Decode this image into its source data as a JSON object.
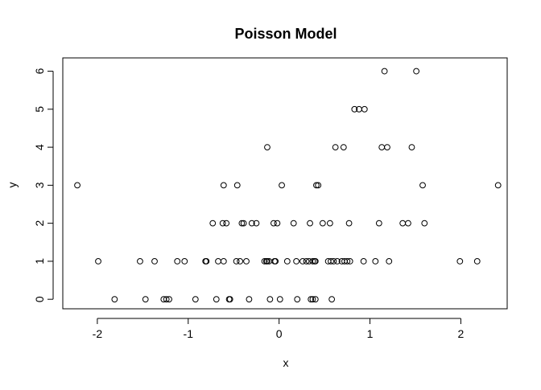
{
  "chart_data": {
    "type": "scatter",
    "title": "Poisson Model",
    "xlabel": "x",
    "ylabel": "y",
    "xlim": [
      -2.38,
      2.51
    ],
    "ylim": [
      -0.25,
      6.35
    ],
    "xticks": [
      "-2",
      "-1",
      "0",
      "1",
      "2"
    ],
    "yticks": [
      "0",
      "1",
      "2",
      "3",
      "4",
      "5",
      "6"
    ],
    "grid": false,
    "legend": "none",
    "marker": "open-circle",
    "series": [
      {
        "points": [
          [
            -2.22,
            3
          ],
          [
            -1.99,
            1
          ],
          [
            -1.81,
            0
          ],
          [
            -1.53,
            1
          ],
          [
            -1.47,
            0
          ],
          [
            -1.37,
            1
          ],
          [
            -1.27,
            0
          ],
          [
            -1.24,
            0
          ],
          [
            -1.21,
            0
          ],
          [
            -1.12,
            1
          ],
          [
            -1.04,
            1
          ],
          [
            -0.92,
            0
          ],
          [
            -0.81,
            1
          ],
          [
            -0.8,
            1
          ],
          [
            -0.73,
            2
          ],
          [
            -0.69,
            0
          ],
          [
            -0.67,
            1
          ],
          [
            -0.62,
            2
          ],
          [
            -0.61,
            3
          ],
          [
            -0.61,
            1
          ],
          [
            -0.58,
            2
          ],
          [
            -0.55,
            0
          ],
          [
            -0.54,
            0
          ],
          [
            -0.47,
            1
          ],
          [
            -0.46,
            3
          ],
          [
            -0.43,
            1
          ],
          [
            -0.41,
            2
          ],
          [
            -0.39,
            2
          ],
          [
            -0.36,
            1
          ],
          [
            -0.33,
            0
          ],
          [
            -0.3,
            2
          ],
          [
            -0.25,
            2
          ],
          [
            -0.16,
            1
          ],
          [
            -0.14,
            1
          ],
          [
            -0.13,
            1
          ],
          [
            -0.13,
            4
          ],
          [
            -0.11,
            1
          ],
          [
            -0.1,
            0
          ],
          [
            -0.06,
            2
          ],
          [
            -0.05,
            1
          ],
          [
            -0.04,
            1
          ],
          [
            -0.02,
            2
          ],
          [
            0.01,
            0
          ],
          [
            0.03,
            3
          ],
          [
            0.09,
            1
          ],
          [
            0.16,
            2
          ],
          [
            0.19,
            1
          ],
          [
            0.2,
            0
          ],
          [
            0.26,
            1
          ],
          [
            0.3,
            1
          ],
          [
            0.33,
            1
          ],
          [
            0.34,
            2
          ],
          [
            0.35,
            0
          ],
          [
            0.37,
            1
          ],
          [
            0.37,
            0
          ],
          [
            0.39,
            1
          ],
          [
            0.4,
            1
          ],
          [
            0.4,
            0
          ],
          [
            0.41,
            3
          ],
          [
            0.43,
            3
          ],
          [
            0.48,
            2
          ],
          [
            0.54,
            1
          ],
          [
            0.56,
            2
          ],
          [
            0.57,
            1
          ],
          [
            0.58,
            0
          ],
          [
            0.6,
            1
          ],
          [
            0.62,
            4
          ],
          [
            0.64,
            1
          ],
          [
            0.69,
            1
          ],
          [
            0.71,
            4
          ],
          [
            0.72,
            1
          ],
          [
            0.75,
            1
          ],
          [
            0.77,
            2
          ],
          [
            0.78,
            1
          ],
          [
            0.83,
            5
          ],
          [
            0.88,
            5
          ],
          [
            0.93,
            1
          ],
          [
            0.94,
            5
          ],
          [
            1.06,
            1
          ],
          [
            1.1,
            2
          ],
          [
            1.13,
            4
          ],
          [
            1.16,
            6
          ],
          [
            1.19,
            4
          ],
          [
            1.21,
            1
          ],
          [
            1.36,
            2
          ],
          [
            1.42,
            2
          ],
          [
            1.46,
            4
          ],
          [
            1.51,
            6
          ],
          [
            1.58,
            3
          ],
          [
            1.6,
            2
          ],
          [
            1.99,
            1
          ],
          [
            2.18,
            1
          ],
          [
            2.41,
            3
          ]
        ]
      }
    ]
  },
  "colors": {
    "background": "#ffffff",
    "ink": "#000000"
  }
}
